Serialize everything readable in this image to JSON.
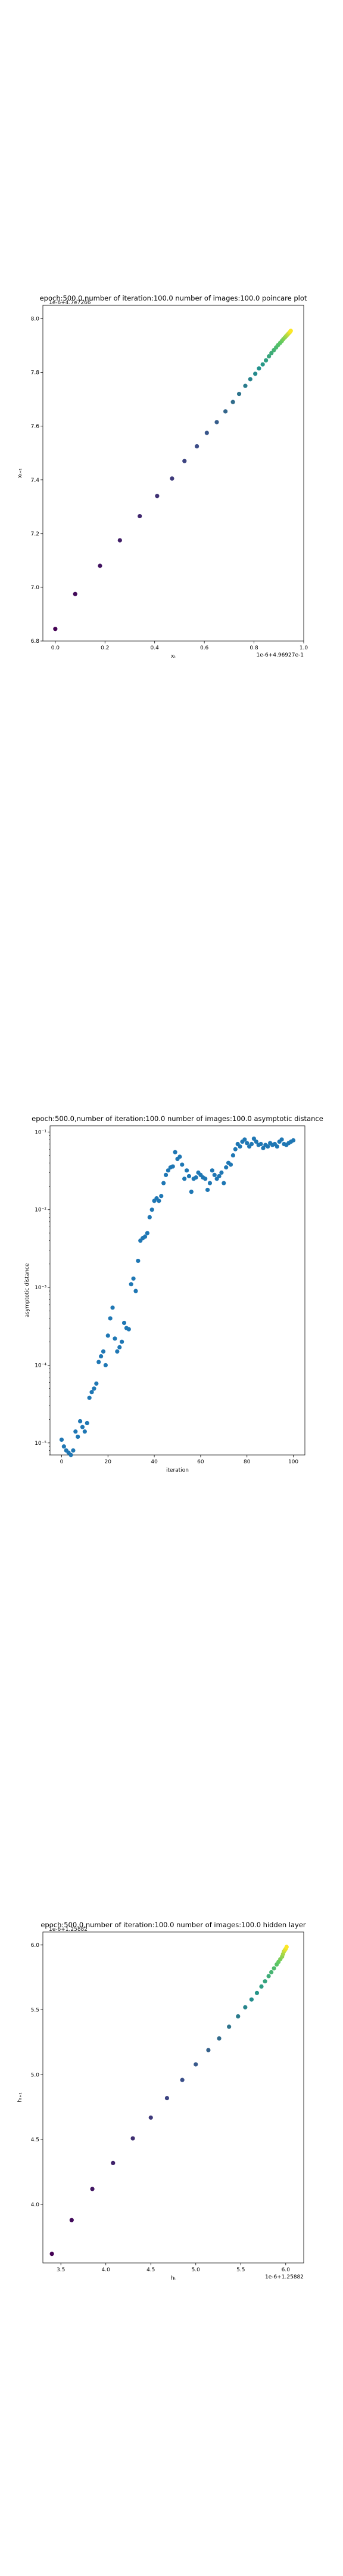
{
  "chart_data": [
    {
      "type": "scatter",
      "title": "epoch:500.0,number of iteration:100.0  number of images:100.0 poincare plot",
      "overlap_text": "1e-6+4.7e7266",
      "xlabel": "xₜ",
      "ylabel": "xₜ₊₁",
      "x_offset_label": "1e-6+4.96927e-1",
      "y_offset_label": "1e-6+4.969E8",
      "xlim": [
        -0.05,
        1.0
      ],
      "ylim": [
        6.8,
        8.05
      ],
      "x_ticks": [
        "0.0",
        "0.2",
        "0.4",
        "0.6",
        "0.8",
        "1.0"
      ],
      "y_ticks": [
        "6.8",
        "7.0",
        "7.2",
        "7.4",
        "7.6",
        "7.8",
        "8.0"
      ],
      "colormap": "viridis",
      "x": [
        0.0,
        0.08,
        0.18,
        0.26,
        0.34,
        0.41,
        0.47,
        0.52,
        0.57,
        0.61,
        0.65,
        0.685,
        0.715,
        0.74,
        0.765,
        0.785,
        0.805,
        0.82,
        0.835,
        0.848,
        0.86,
        0.87,
        0.88,
        0.889,
        0.897,
        0.905,
        0.912,
        0.918,
        0.924,
        0.929,
        0.934,
        0.938,
        0.942,
        0.945,
        0.948
      ],
      "y": [
        6.845,
        6.975,
        7.08,
        7.175,
        7.265,
        7.34,
        7.405,
        7.47,
        7.525,
        7.575,
        7.615,
        7.655,
        7.69,
        7.72,
        7.75,
        7.775,
        7.795,
        7.815,
        7.83,
        7.845,
        7.86,
        7.872,
        7.883,
        7.893,
        7.902,
        7.91,
        7.917,
        7.924,
        7.93,
        7.935,
        7.94,
        7.944,
        7.948,
        7.951,
        7.955
      ]
    },
    {
      "type": "scatter",
      "title": "epoch:500.0,number of iteration:100.0  number of images:100.0 asymptotic distance",
      "xlabel": "iteration",
      "ylabel": "asymptotic distance",
      "xlim": [
        -5,
        105
      ],
      "ylim": [
        7e-06,
        0.12
      ],
      "y_scale": "log",
      "x_ticks": [
        "0",
        "20",
        "40",
        "60",
        "80",
        "100"
      ],
      "y_ticks": [
        "10⁻¹",
        "10⁻²",
        "10⁻³",
        "10⁻⁴",
        "10⁻⁵"
      ],
      "color": "#1f77b4",
      "x": [
        0,
        1,
        2,
        3,
        4,
        5,
        6,
        7,
        8,
        9,
        10,
        11,
        12,
        13,
        14,
        15,
        16,
        17,
        18,
        19,
        20,
        21,
        22,
        23,
        24,
        25,
        26,
        27,
        28,
        29,
        30,
        31,
        32,
        33,
        34,
        35,
        36,
        37,
        38,
        39,
        40,
        41,
        42,
        43,
        44,
        45,
        46,
        47,
        48,
        49,
        50,
        51,
        52,
        53,
        54,
        55,
        56,
        57,
        58,
        59,
        60,
        61,
        62,
        63,
        64,
        65,
        66,
        67,
        68,
        69,
        70,
        71,
        72,
        73,
        74,
        75,
        76,
        77,
        78,
        79,
        80,
        81,
        82,
        83,
        84,
        85,
        86,
        87,
        88,
        89,
        90,
        91,
        92,
        93,
        94,
        95,
        96,
        97,
        98,
        99,
        100
      ],
      "y": [
        1.1e-05,
        9e-06,
        8e-06,
        7.5e-06,
        7e-06,
        8e-06,
        1.4e-05,
        1.2e-05,
        1.9e-05,
        1.6e-05,
        1.4e-05,
        1.8e-05,
        3.8e-05,
        4.5e-05,
        5e-05,
        5.8e-05,
        0.00011,
        0.00013,
        0.00015,
        0.0001,
        0.00024,
        0.0004,
        0.00055,
        0.00022,
        0.00015,
        0.00017,
        0.0002,
        0.00035,
        0.0003,
        0.00029,
        0.0011,
        0.0013,
        0.0009,
        0.0022,
        0.004,
        0.0043,
        0.0045,
        0.005,
        0.008,
        0.01,
        0.013,
        0.014,
        0.013,
        0.015,
        0.022,
        0.028,
        0.032,
        0.035,
        0.036,
        0.055,
        0.045,
        0.048,
        0.038,
        0.025,
        0.032,
        0.027,
        0.017,
        0.025,
        0.026,
        0.03,
        0.028,
        0.026,
        0.025,
        0.018,
        0.022,
        0.032,
        0.028,
        0.025,
        0.027,
        0.03,
        0.022,
        0.035,
        0.04,
        0.038,
        0.05,
        0.06,
        0.07,
        0.065,
        0.075,
        0.08,
        0.072,
        0.065,
        0.07,
        0.082,
        0.075,
        0.068,
        0.07,
        0.062,
        0.068,
        0.065,
        0.072,
        0.068,
        0.07,
        0.065,
        0.075,
        0.08,
        0.07,
        0.068,
        0.072,
        0.075,
        0.078
      ]
    },
    {
      "type": "scatter",
      "title": "epoch:500.0,number of iteration:100.0  number of images:100.0 hidden layer",
      "overlap_text": "1e-6+1.25882",
      "xlabel": "hₜ",
      "ylabel": "hₜ₊₁",
      "x_offset_label": "1e-6+1.25882",
      "xlim": [
        3.3,
        6.2
      ],
      "ylim": [
        3.55,
        6.1
      ],
      "x_ticks": [
        "3.5",
        "4.0",
        "4.5",
        "5.0",
        "5.5",
        "6.0"
      ],
      "y_ticks": [
        "4.0",
        "4.5",
        "5.0",
        "5.5",
        "6.0"
      ],
      "colormap": "viridis",
      "x": [
        3.4,
        3.62,
        3.85,
        4.08,
        4.3,
        4.5,
        4.68,
        4.85,
        5.0,
        5.14,
        5.26,
        5.37,
        5.47,
        5.55,
        5.62,
        5.68,
        5.73,
        5.77,
        5.81,
        5.84,
        5.87,
        5.9,
        5.92,
        5.94,
        5.96,
        5.97,
        5.98,
        5.99,
        6.0,
        6.01
      ],
      "y": [
        3.62,
        3.88,
        4.12,
        4.32,
        4.51,
        4.67,
        4.82,
        4.96,
        5.08,
        5.19,
        5.28,
        5.37,
        5.45,
        5.52,
        5.58,
        5.63,
        5.68,
        5.72,
        5.76,
        5.79,
        5.82,
        5.85,
        5.87,
        5.89,
        5.91,
        5.93,
        5.95,
        5.96,
        5.97,
        5.985
      ]
    }
  ]
}
